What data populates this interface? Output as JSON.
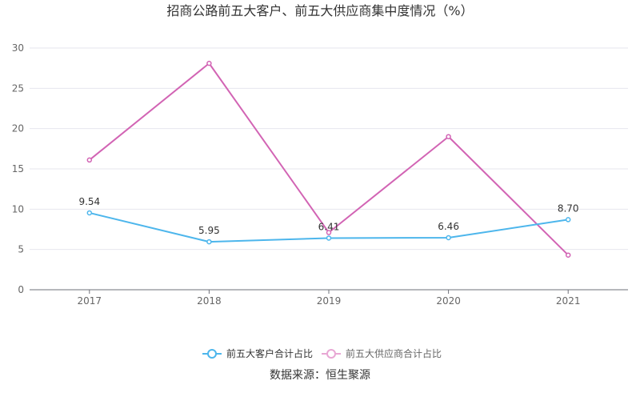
{
  "chart_data": {
    "type": "line",
    "title": "招商公路前五大客户、前五大供应商集中度情况（%）",
    "categories": [
      "2017",
      "2018",
      "2019",
      "2020",
      "2021"
    ],
    "ylim": [
      0,
      30
    ],
    "yticks": [
      0,
      5,
      10,
      15,
      20,
      25,
      30
    ],
    "grid": true,
    "legend_position": "bottom",
    "series": [
      {
        "name": "前五大客户合计占比",
        "values": [
          9.54,
          5.95,
          6.41,
          6.46,
          8.7
        ],
        "labels": [
          "9.54",
          "5.95",
          "6.41",
          "6.46",
          "8.70"
        ],
        "color": "#4db6ec"
      },
      {
        "name": "前五大供应商合计占比",
        "values": [
          16.1,
          28.1,
          7.1,
          19.0,
          4.3
        ],
        "color": "#d264b4"
      }
    ],
    "source": "数据来源：恒生聚源"
  }
}
